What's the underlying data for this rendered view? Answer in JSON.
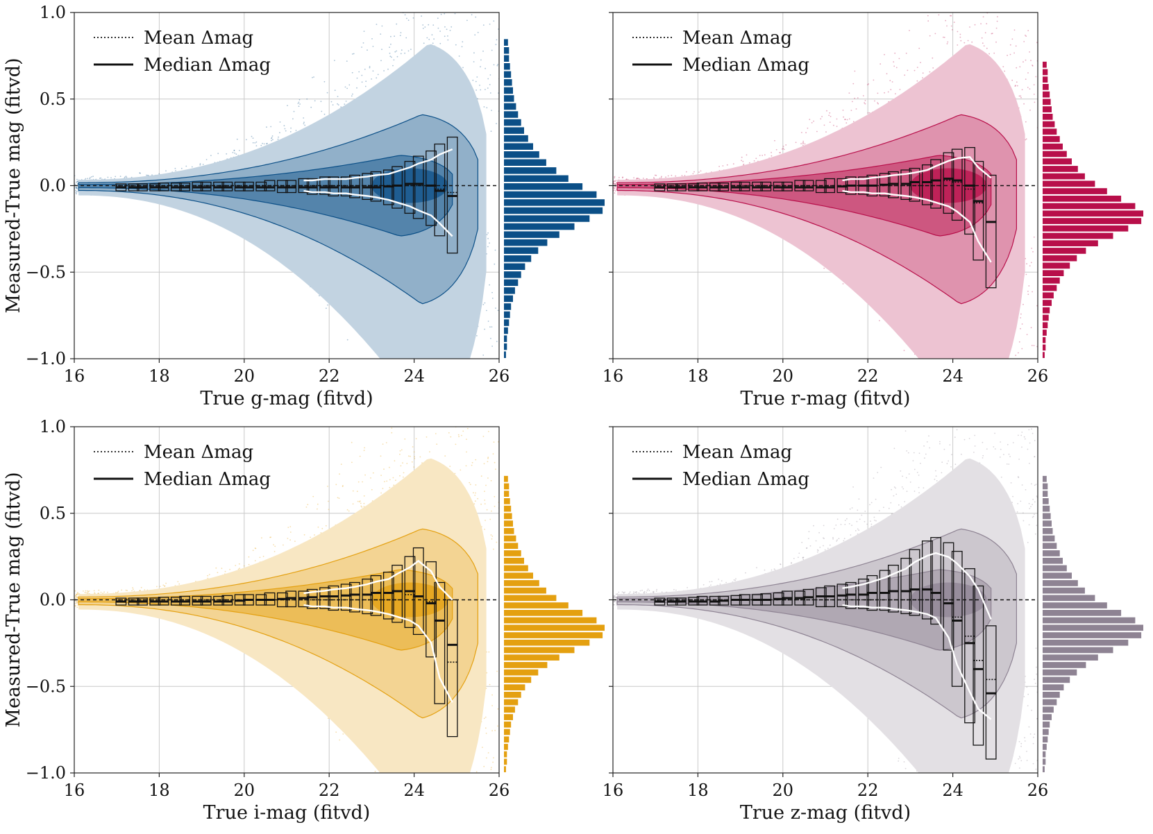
{
  "chart_data": [
    {
      "type": "scatter",
      "band": "g",
      "color": "#0b4f87",
      "xlabel": "True g-mag (fitvd)",
      "ylabel": "Measured-True mag (fitvd)",
      "xlim": [
        16,
        26
      ],
      "ylim": [
        -1.0,
        1.0
      ],
      "x_ticks": [
        "16",
        "18",
        "20",
        "22",
        "24",
        "26"
      ],
      "y_ticks": [
        "−1.0",
        "−0.5",
        "0.0",
        "0.5",
        "1.0"
      ],
      "legend": [
        "Mean Δmag",
        "Median Δmag"
      ],
      "bins": [
        17.1,
        17.4,
        17.6,
        17.9,
        18.1,
        18.4,
        18.6,
        18.9,
        19.1,
        19.4,
        19.6,
        19.9,
        20.1,
        20.4,
        20.6,
        20.9,
        21.1,
        21.4,
        21.6,
        21.9,
        22.1,
        22.4,
        22.6,
        22.9,
        23.1,
        23.4,
        23.6,
        23.9,
        24.1,
        24.4,
        24.6,
        24.9
      ],
      "median": [
        -0.01,
        -0.01,
        -0.01,
        -0.01,
        -0.01,
        -0.01,
        -0.01,
        -0.01,
        -0.01,
        -0.01,
        -0.01,
        -0.01,
        -0.01,
        -0.01,
        -0.01,
        -0.01,
        -0.01,
        -0.01,
        -0.01,
        -0.01,
        -0.01,
        -0.01,
        -0.01,
        -0.01,
        -0.01,
        -0.005,
        0.0,
        0.01,
        0.01,
        0.0,
        -0.03,
        -0.06
      ],
      "mean": [
        0.0,
        0.0,
        0.0,
        0.0,
        0.0,
        0.0,
        0.0,
        0.0,
        0.0,
        0.0,
        0.0,
        0.0,
        0.0,
        0.0,
        0.0,
        0.0,
        0.0,
        0.0,
        0.0,
        0.0,
        0.0,
        0.0,
        0.0,
        0.0,
        0.0,
        0.0,
        0.0,
        0.0,
        0.0,
        0.0,
        -0.02,
        -0.04
      ],
      "box_upper": [
        0.01,
        0.01,
        0.01,
        0.01,
        0.015,
        0.015,
        0.015,
        0.02,
        0.02,
        0.02,
        0.02,
        0.02,
        0.02,
        0.02,
        0.03,
        0.03,
        0.03,
        0.04,
        0.04,
        0.05,
        0.05,
        0.05,
        0.06,
        0.07,
        0.08,
        0.09,
        0.11,
        0.14,
        0.17,
        0.2,
        0.24,
        0.28
      ],
      "box_lower": [
        -0.03,
        -0.03,
        -0.03,
        -0.03,
        -0.03,
        -0.03,
        -0.03,
        -0.03,
        -0.03,
        -0.03,
        -0.03,
        -0.03,
        -0.03,
        -0.03,
        -0.03,
        -0.04,
        -0.04,
        -0.04,
        -0.05,
        -0.05,
        -0.06,
        -0.06,
        -0.07,
        -0.08,
        -0.09,
        -0.11,
        -0.13,
        -0.16,
        -0.19,
        -0.23,
        -0.29,
        -0.39
      ],
      "hist": [
        0.02,
        0.03,
        0.03,
        0.04,
        0.05,
        0.06,
        0.07,
        0.09,
        0.11,
        0.14,
        0.17,
        0.21,
        0.27,
        0.34,
        0.43,
        0.55,
        0.7,
        0.85,
        0.98,
        1.0,
        0.92,
        0.78,
        0.64,
        0.52,
        0.42,
        0.35,
        0.29,
        0.24,
        0.2,
        0.17,
        0.14,
        0.12,
        0.1,
        0.09,
        0.08,
        0.07,
        0.06,
        0.05,
        0.05,
        0.04
      ],
      "hist_range": [
        -1.0,
        0.85
      ]
    },
    {
      "type": "scatter",
      "band": "r",
      "color": "#b80f4a",
      "xlabel": "True r-mag (fitvd)",
      "ylabel": "",
      "xlim": [
        16,
        26
      ],
      "ylim": [
        -1.0,
        1.0
      ],
      "x_ticks": [
        "16",
        "18",
        "20",
        "22",
        "24",
        "26"
      ],
      "y_ticks": [],
      "legend": [
        "Mean Δmag",
        "Median Δmag"
      ],
      "bins": [
        17.1,
        17.4,
        17.6,
        17.9,
        18.1,
        18.4,
        18.6,
        18.9,
        19.1,
        19.4,
        19.6,
        19.9,
        20.1,
        20.4,
        20.6,
        20.9,
        21.1,
        21.4,
        21.6,
        21.9,
        22.1,
        22.4,
        22.6,
        22.9,
        23.1,
        23.4,
        23.6,
        23.9,
        24.1,
        24.4,
        24.6,
        24.9
      ],
      "median": [
        -0.01,
        -0.01,
        -0.01,
        -0.01,
        -0.01,
        -0.01,
        -0.01,
        -0.01,
        -0.01,
        -0.01,
        -0.01,
        -0.01,
        -0.01,
        -0.01,
        -0.01,
        -0.01,
        -0.01,
        -0.005,
        0.0,
        0.0,
        0.0,
        0.005,
        0.01,
        0.01,
        0.02,
        0.02,
        0.03,
        0.04,
        0.03,
        0.0,
        -0.09,
        -0.21
      ],
      "mean": [
        0.0,
        0.0,
        0.0,
        0.0,
        0.0,
        0.0,
        0.0,
        0.0,
        0.0,
        0.0,
        0.0,
        0.0,
        0.0,
        0.0,
        0.0,
        0.0,
        0.0,
        0.0,
        0.0,
        0.0,
        0.0,
        0.0,
        0.0,
        0.0,
        0.0,
        0.0,
        0.0,
        0.03,
        0.02,
        -0.02,
        -0.1,
        -0.21
      ],
      "box_upper": [
        0.01,
        0.01,
        0.01,
        0.01,
        0.015,
        0.015,
        0.015,
        0.02,
        0.02,
        0.02,
        0.02,
        0.02,
        0.02,
        0.03,
        0.03,
        0.03,
        0.04,
        0.04,
        0.05,
        0.05,
        0.06,
        0.07,
        0.08,
        0.09,
        0.1,
        0.12,
        0.15,
        0.19,
        0.21,
        0.22,
        0.14,
        0.06
      ],
      "box_lower": [
        -0.03,
        -0.03,
        -0.03,
        -0.03,
        -0.03,
        -0.03,
        -0.03,
        -0.03,
        -0.03,
        -0.03,
        -0.03,
        -0.03,
        -0.03,
        -0.03,
        -0.03,
        -0.04,
        -0.04,
        -0.04,
        -0.05,
        -0.05,
        -0.06,
        -0.06,
        -0.07,
        -0.08,
        -0.09,
        -0.11,
        -0.13,
        -0.16,
        -0.2,
        -0.28,
        -0.43,
        -0.59
      ],
      "hist": [
        0.02,
        0.03,
        0.03,
        0.04,
        0.05,
        0.06,
        0.07,
        0.09,
        0.11,
        0.14,
        0.17,
        0.21,
        0.27,
        0.34,
        0.43,
        0.55,
        0.7,
        0.85,
        0.98,
        1.0,
        0.92,
        0.78,
        0.64,
        0.52,
        0.42,
        0.35,
        0.29,
        0.24,
        0.2,
        0.17,
        0.14,
        0.12,
        0.1,
        0.09,
        0.08,
        0.07,
        0.06,
        0.05,
        0.05,
        0.04
      ],
      "hist_range": [
        -1.0,
        0.72
      ]
    },
    {
      "type": "scatter",
      "band": "i",
      "color": "#e4a010",
      "xlabel": "True i-mag (fitvd)",
      "ylabel": "Measured-True mag (fitvd)",
      "xlim": [
        16,
        26
      ],
      "ylim": [
        -1.0,
        1.0
      ],
      "x_ticks": [
        "16",
        "18",
        "20",
        "22",
        "24",
        "26"
      ],
      "y_ticks": [
        "−1.0",
        "−0.5",
        "0.0",
        "0.5",
        "1.0"
      ],
      "legend": [
        "Mean Δmag",
        "Median Δmag"
      ],
      "bins": [
        17.1,
        17.4,
        17.6,
        17.9,
        18.1,
        18.4,
        18.6,
        18.9,
        19.1,
        19.4,
        19.6,
        19.9,
        20.1,
        20.4,
        20.6,
        20.9,
        21.1,
        21.4,
        21.6,
        21.9,
        22.1,
        22.4,
        22.6,
        22.9,
        23.1,
        23.4,
        23.6,
        23.9,
        24.1,
        24.4,
        24.6,
        24.9
      ],
      "median": [
        -0.01,
        -0.01,
        -0.01,
        -0.01,
        -0.01,
        -0.01,
        -0.01,
        -0.01,
        -0.01,
        -0.01,
        -0.01,
        -0.005,
        0.0,
        0.0,
        0.0,
        0.005,
        0.01,
        0.01,
        0.015,
        0.02,
        0.02,
        0.025,
        0.03,
        0.03,
        0.04,
        0.04,
        0.05,
        0.05,
        0.02,
        -0.02,
        -0.12,
        -0.26
      ],
      "mean": [
        0.0,
        0.0,
        0.0,
        0.0,
        0.0,
        0.0,
        0.0,
        0.0,
        0.0,
        0.0,
        0.0,
        0.0,
        0.0,
        0.0,
        0.0,
        0.0,
        0.0,
        0.0,
        0.0,
        0.0,
        0.0,
        0.0,
        0.0,
        0.0,
        0.0,
        0.0,
        0.0,
        0.03,
        0.02,
        -0.01,
        -0.12,
        -0.36
      ],
      "box_upper": [
        0.01,
        0.01,
        0.01,
        0.01,
        0.015,
        0.015,
        0.02,
        0.02,
        0.02,
        0.02,
        0.025,
        0.03,
        0.03,
        0.03,
        0.04,
        0.04,
        0.05,
        0.05,
        0.06,
        0.07,
        0.08,
        0.09,
        0.1,
        0.12,
        0.14,
        0.16,
        0.2,
        0.25,
        0.3,
        0.22,
        0.1,
        0.0
      ],
      "box_lower": [
        -0.03,
        -0.03,
        -0.03,
        -0.03,
        -0.03,
        -0.03,
        -0.03,
        -0.03,
        -0.03,
        -0.03,
        -0.03,
        -0.03,
        -0.03,
        -0.03,
        -0.03,
        -0.04,
        -0.04,
        -0.04,
        -0.05,
        -0.05,
        -0.06,
        -0.06,
        -0.07,
        -0.08,
        -0.09,
        -0.11,
        -0.13,
        -0.16,
        -0.2,
        -0.33,
        -0.6,
        -0.79
      ],
      "hist": [
        0.02,
        0.03,
        0.03,
        0.04,
        0.05,
        0.06,
        0.07,
        0.09,
        0.11,
        0.14,
        0.17,
        0.21,
        0.27,
        0.34,
        0.43,
        0.55,
        0.7,
        0.85,
        0.98,
        1.0,
        0.92,
        0.78,
        0.64,
        0.52,
        0.42,
        0.35,
        0.29,
        0.24,
        0.2,
        0.17,
        0.14,
        0.12,
        0.1,
        0.09,
        0.08,
        0.07,
        0.06,
        0.05,
        0.05,
        0.04
      ],
      "hist_range": [
        -1.0,
        0.72
      ]
    },
    {
      "type": "scatter",
      "band": "z",
      "color": "#8e8393",
      "xlabel": "True z-mag (fitvd)",
      "ylabel": "",
      "xlim": [
        16,
        26
      ],
      "ylim": [
        -1.0,
        1.0
      ],
      "x_ticks": [
        "16",
        "18",
        "20",
        "22",
        "24",
        "26"
      ],
      "y_ticks": [],
      "legend": [
        "Mean Δmag",
        "Median Δmag"
      ],
      "bins": [
        17.1,
        17.4,
        17.6,
        17.9,
        18.1,
        18.4,
        18.6,
        18.9,
        19.1,
        19.4,
        19.6,
        19.9,
        20.1,
        20.4,
        20.6,
        20.9,
        21.1,
        21.4,
        21.6,
        21.9,
        22.1,
        22.4,
        22.6,
        22.9,
        23.1,
        23.4,
        23.6,
        23.9,
        24.1,
        24.4,
        24.6,
        24.9
      ],
      "median": [
        -0.01,
        -0.01,
        -0.01,
        -0.01,
        -0.01,
        -0.01,
        -0.005,
        0.0,
        0.0,
        0.0,
        0.0,
        0.005,
        0.01,
        0.01,
        0.015,
        0.02,
        0.02,
        0.025,
        0.03,
        0.03,
        0.04,
        0.04,
        0.05,
        0.05,
        0.06,
        0.06,
        0.04,
        -0.02,
        -0.12,
        -0.25,
        -0.4,
        -0.54
      ],
      "mean": [
        0.0,
        0.0,
        0.0,
        0.0,
        0.0,
        0.0,
        0.0,
        0.0,
        0.0,
        0.0,
        0.0,
        0.0,
        0.0,
        0.0,
        0.0,
        0.0,
        0.0,
        0.0,
        0.0,
        0.0,
        0.0,
        0.0,
        0.0,
        0.0,
        0.0,
        0.0,
        0.0,
        0.0,
        -0.1,
        -0.21,
        -0.35,
        -0.46
      ],
      "box_upper": [
        0.01,
        0.01,
        0.01,
        0.015,
        0.02,
        0.02,
        0.02,
        0.025,
        0.03,
        0.03,
        0.035,
        0.04,
        0.05,
        0.05,
        0.06,
        0.07,
        0.08,
        0.09,
        0.1,
        0.12,
        0.14,
        0.17,
        0.2,
        0.24,
        0.29,
        0.34,
        0.36,
        0.33,
        0.28,
        0.18,
        0.08,
        -0.15
      ],
      "box_lower": [
        -0.03,
        -0.03,
        -0.03,
        -0.03,
        -0.03,
        -0.03,
        -0.03,
        -0.03,
        -0.03,
        -0.03,
        -0.03,
        -0.03,
        -0.03,
        -0.03,
        -0.03,
        -0.04,
        -0.04,
        -0.04,
        -0.05,
        -0.05,
        -0.06,
        -0.06,
        -0.07,
        -0.08,
        -0.09,
        -0.11,
        -0.14,
        -0.29,
        -0.5,
        -0.71,
        -0.84,
        -0.92
      ],
      "hist": [
        0.02,
        0.03,
        0.03,
        0.04,
        0.05,
        0.06,
        0.07,
        0.09,
        0.11,
        0.14,
        0.17,
        0.21,
        0.27,
        0.34,
        0.43,
        0.55,
        0.7,
        0.85,
        0.98,
        1.0,
        0.92,
        0.78,
        0.64,
        0.52,
        0.42,
        0.35,
        0.29,
        0.24,
        0.2,
        0.17,
        0.14,
        0.12,
        0.1,
        0.09,
        0.08,
        0.07,
        0.06,
        0.05,
        0.05,
        0.04
      ],
      "hist_range": [
        -1.0,
        0.72
      ]
    }
  ]
}
